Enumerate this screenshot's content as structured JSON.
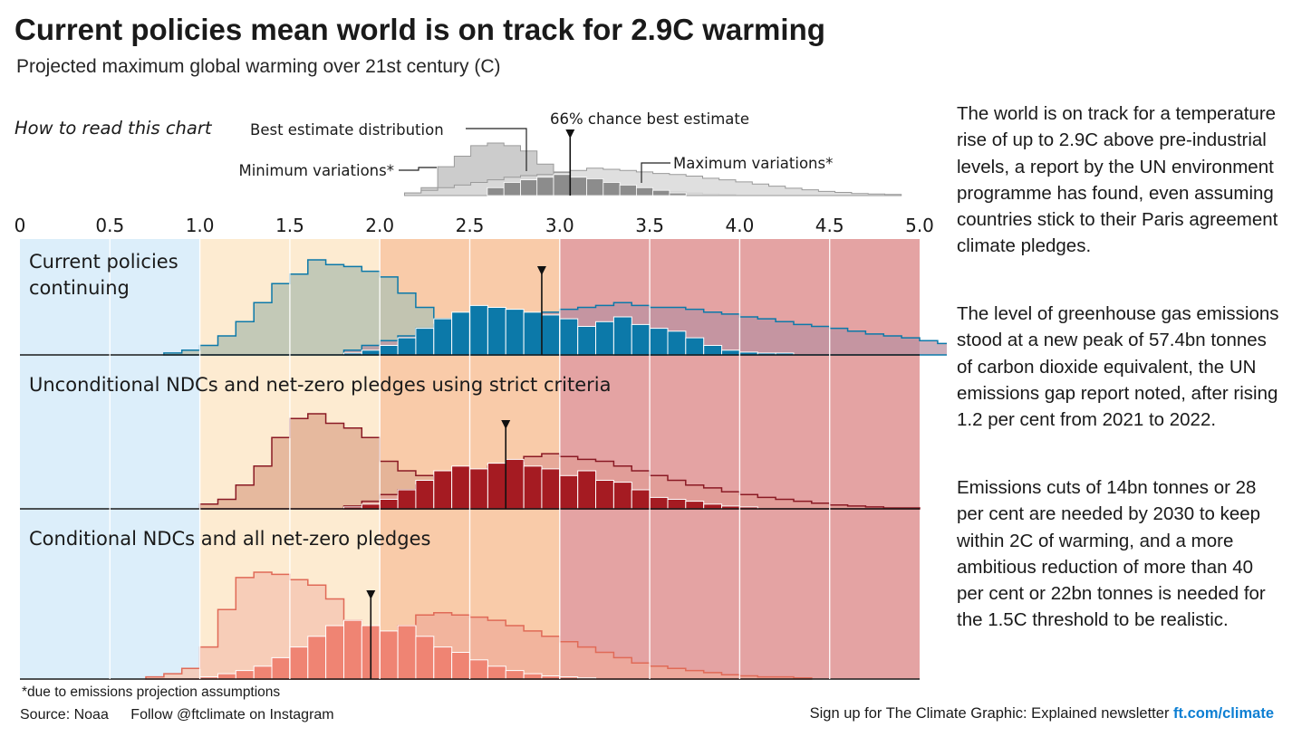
{
  "title": "Current policies mean world is on track for 2.9C warming",
  "subtitle": "Projected maximum global warming over 21st century (C)",
  "key": {
    "heading": "How to read this chart",
    "best_estimate_label": "Best estimate distribution",
    "chance_label": "66% chance best estimate",
    "min_label": "Minimum variations*",
    "max_label": "Maximum variations*"
  },
  "side_text": [
    "The world is on track for a temperature rise of up to 2.9C above pre-industrial levels, a report by the UN environment programme has found, even assuming countries stick to their Paris agreement climate pledges.",
    "The level of greenhouse gas emissions stood at a new peak of 57.4bn tonnes of carbon dioxide equivalent, the UN emissions gap report noted, after rising 1.2 per cent from 2021 to 2022.",
    "Emissions cuts of 14bn tonnes or 28 per cent are needed by 2030 to keep within 2C of warming, and a more ambitious reduction of more than 40 per cent or 22bn tonnes is needed for the 1.5C threshold to be realistic."
  ],
  "footnote": "*due to emissions projection assumptions",
  "source": "Source: Noaa",
  "follow": "Follow @ftclimate on Instagram",
  "signup_text": "Sign up for The Climate Graphic: Explained newsletter",
  "signup_link": "ft.com/climate",
  "chart_data": {
    "type": "histogram",
    "x_ticks": [
      "0",
      "0.5",
      "1.0",
      "1.5",
      "2.0",
      "2.5",
      "3.0",
      "3.5",
      "4.0",
      "4.5",
      "5.0"
    ],
    "xlim": [
      0,
      5
    ],
    "bin_width": 0.1,
    "bands": [
      {
        "from": 0,
        "to": 1,
        "color": "#dceefa"
      },
      {
        "from": 1,
        "to": 2,
        "color": "#fdebd1"
      },
      {
        "from": 2,
        "to": 3,
        "color": "#f9cba9"
      },
      {
        "from": 3,
        "to": 5,
        "color": "#e4a3a3"
      }
    ],
    "key_histograms": {
      "min": {
        "x0": 2.0,
        "values": [
          0.05,
          0.15,
          0.55,
          0.75,
          0.95,
          1.0,
          0.95,
          0.85,
          0.6,
          0.45,
          0.35,
          0.28,
          0.22,
          0.17,
          0.13,
          0.1,
          0.07,
          0.05,
          0.03,
          0.02
        ]
      },
      "max": {
        "x0": 2.0,
        "values": [
          0.05,
          0.1,
          0.15,
          0.2,
          0.25,
          0.3,
          0.35,
          0.38,
          0.4,
          0.44,
          0.48,
          0.52,
          0.5,
          0.48,
          0.45,
          0.42,
          0.4,
          0.37,
          0.33,
          0.3,
          0.26,
          0.22,
          0.18,
          0.14,
          0.11,
          0.08,
          0.06,
          0.04,
          0.03,
          0.02
        ]
      },
      "best": {
        "x0": 2.5,
        "values": [
          0.15,
          0.25,
          0.3,
          0.35,
          0.4,
          0.35,
          0.32,
          0.25,
          0.2,
          0.15,
          0.1,
          0.05
        ]
      },
      "best_estimate": 3.0
    },
    "panels": [
      {
        "name": "Current policies continuing",
        "name_lines": [
          "Current policies",
          "continuing"
        ],
        "best_estimate": 2.9,
        "fill_color": "#0c79a9",
        "stroke_color": "#0c79a9",
        "min_color": "#b9c3b3",
        "max_color": "#b88f9f",
        "min": {
          "x0": 0.8,
          "values": [
            0.02,
            0.05,
            0.1,
            0.2,
            0.35,
            0.55,
            0.75,
            0.85,
            1.0,
            0.95,
            0.93,
            0.88,
            0.82,
            0.65,
            0.5,
            0.38,
            0.3,
            0.25,
            0.2,
            0.16,
            0.13,
            0.1,
            0.08,
            0.06,
            0.05,
            0.04,
            0.03,
            0.02,
            0.02,
            0.01,
            0.01,
            0.01
          ]
        },
        "max": {
          "x0": 1.8,
          "values": [
            0.05,
            0.1,
            0.15,
            0.2,
            0.28,
            0.32,
            0.35,
            0.4,
            0.42,
            0.45,
            0.43,
            0.45,
            0.48,
            0.5,
            0.52,
            0.55,
            0.52,
            0.5,
            0.5,
            0.48,
            0.45,
            0.43,
            0.4,
            0.38,
            0.35,
            0.32,
            0.3,
            0.28,
            0.25,
            0.22,
            0.2,
            0.18,
            0.15,
            0.12
          ]
        },
        "best": {
          "x0": 1.8,
          "values": [
            0.02,
            0.05,
            0.1,
            0.18,
            0.28,
            0.38,
            0.45,
            0.52,
            0.5,
            0.48,
            0.45,
            0.42,
            0.38,
            0.3,
            0.35,
            0.4,
            0.32,
            0.28,
            0.25,
            0.18,
            0.1,
            0.05,
            0.03,
            0.02,
            0.02
          ]
        }
      },
      {
        "name": "Unconditional NDCs and net-zero pledges using strict criteria",
        "name_lines": [
          "Unconditional NDCs and net-zero pledges using strict criteria"
        ],
        "best_estimate": 2.7,
        "fill_color": "#a51b22",
        "stroke_color": "#8a1a24",
        "min_color": "#e2b095",
        "max_color": "#e09a93",
        "min": {
          "x0": 1.0,
          "values": [
            0.05,
            0.1,
            0.25,
            0.45,
            0.75,
            0.95,
            1.0,
            0.9,
            0.85,
            0.75,
            0.5,
            0.4,
            0.35,
            0.3,
            0.25,
            0.2,
            0.16,
            0.12,
            0.1,
            0.08,
            0.06,
            0.05,
            0.04,
            0.03,
            0.02,
            0.01
          ]
        },
        "max": {
          "x0": 1.8,
          "values": [
            0.03,
            0.08,
            0.15,
            0.2,
            0.25,
            0.3,
            0.35,
            0.4,
            0.45,
            0.5,
            0.55,
            0.58,
            0.55,
            0.52,
            0.5,
            0.45,
            0.4,
            0.35,
            0.3,
            0.25,
            0.22,
            0.18,
            0.15,
            0.12,
            0.1,
            0.08,
            0.06,
            0.04,
            0.03,
            0.02,
            0.01,
            0.01
          ]
        },
        "best": {
          "x0": 1.8,
          "values": [
            0.02,
            0.05,
            0.1,
            0.2,
            0.3,
            0.4,
            0.45,
            0.42,
            0.48,
            0.52,
            0.45,
            0.42,
            0.35,
            0.4,
            0.3,
            0.28,
            0.2,
            0.12,
            0.1,
            0.08,
            0.05,
            0.03,
            0.02
          ]
        }
      },
      {
        "name": "Conditional NDCs and all net-zero pledges",
        "name_lines": [
          "Conditional NDCs and all net-zero pledges"
        ],
        "best_estimate": 1.95,
        "fill_color": "#ef8473",
        "stroke_color": "#e06a57",
        "min_color": "#f6c8b4",
        "max_color": "#f0aa98",
        "min": {
          "x0": 0.7,
          "values": [
            0.02,
            0.05,
            0.1,
            0.3,
            0.65,
            0.95,
            1.0,
            0.98,
            0.93,
            0.88,
            0.75,
            0.55,
            0.4,
            0.3,
            0.22,
            0.16,
            0.12,
            0.09,
            0.07,
            0.05,
            0.04,
            0.03,
            0.02,
            0.01
          ]
        },
        "max": {
          "x0": 1.3,
          "values": [
            0.03,
            0.06,
            0.1,
            0.15,
            0.22,
            0.3,
            0.36,
            0.4,
            0.5,
            0.6,
            0.62,
            0.6,
            0.58,
            0.55,
            0.5,
            0.45,
            0.4,
            0.35,
            0.3,
            0.25,
            0.2,
            0.15,
            0.12,
            0.1,
            0.08,
            0.06,
            0.04,
            0.03,
            0.02,
            0.02,
            0.01
          ]
        },
        "best": {
          "x0": 1.0,
          "values": [
            0.02,
            0.05,
            0.08,
            0.12,
            0.2,
            0.3,
            0.4,
            0.5,
            0.55,
            0.5,
            0.45,
            0.5,
            0.4,
            0.3,
            0.25,
            0.18,
            0.12,
            0.08,
            0.05,
            0.03,
            0.02,
            0.01
          ]
        }
      }
    ]
  }
}
